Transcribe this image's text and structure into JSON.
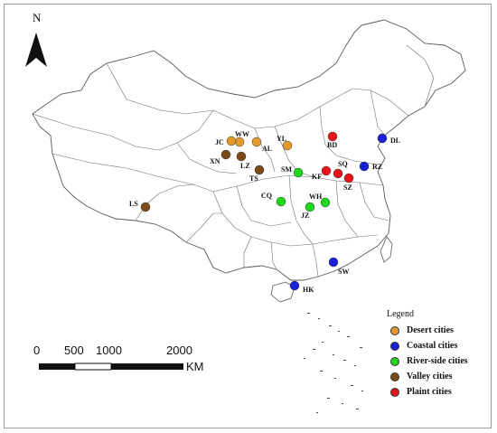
{
  "map": {
    "north_label": "N",
    "cities": [
      {
        "code": "BD",
        "group": "plain",
        "color": "#e8141c"
      },
      {
        "code": "DL",
        "group": "coastal",
        "color": "#1820d8"
      },
      {
        "code": "YL",
        "group": "desert",
        "color": "#e39a2b"
      },
      {
        "code": "WW",
        "group": "desert",
        "color": "#e39a2b"
      },
      {
        "code": "JC",
        "group": "desert",
        "color": "#e39a2b"
      },
      {
        "code": "AL",
        "group": "desert",
        "color": "#e39a2b"
      },
      {
        "code": "XN",
        "group": "valley",
        "color": "#7a4a17"
      },
      {
        "code": "LZ",
        "group": "valley",
        "color": "#7a4a17"
      },
      {
        "code": "TS",
        "group": "valley",
        "color": "#7a4a17"
      },
      {
        "code": "SM",
        "group": "river",
        "color": "#1fd71c"
      },
      {
        "code": "KF",
        "group": "plain",
        "color": "#e8141c"
      },
      {
        "code": "SQ",
        "group": "plain",
        "color": "#e8141c"
      },
      {
        "code": "SZ",
        "group": "plain",
        "color": "#e8141c"
      },
      {
        "code": "RZ",
        "group": "coastal",
        "color": "#1820d8"
      },
      {
        "code": "CQ",
        "group": "river",
        "color": "#1fd71c"
      },
      {
        "code": "WH",
        "group": "river",
        "color": "#1fd71c"
      },
      {
        "code": "JZ",
        "group": "river",
        "color": "#1fd71c"
      },
      {
        "code": "LS",
        "group": "valley",
        "color": "#7a4a17"
      },
      {
        "code": "SW",
        "group": "coastal",
        "color": "#1820d8"
      },
      {
        "code": "HK",
        "group": "coastal",
        "color": "#1820d8"
      }
    ]
  },
  "legend": {
    "title": "Legend",
    "items": [
      {
        "label": "Desert cities",
        "color": "#e39a2b"
      },
      {
        "label": "Coastal cities",
        "color": "#1820d8"
      },
      {
        "label": "River-side cities",
        "color": "#1fd71c"
      },
      {
        "label": "Valley cities",
        "color": "#7a4a17"
      },
      {
        "label": "Plaint cities",
        "color": "#e8141c"
      }
    ]
  },
  "scale_bar": {
    "ticks": [
      "0",
      "500",
      "1000",
      "2000"
    ],
    "unit": "KM"
  }
}
